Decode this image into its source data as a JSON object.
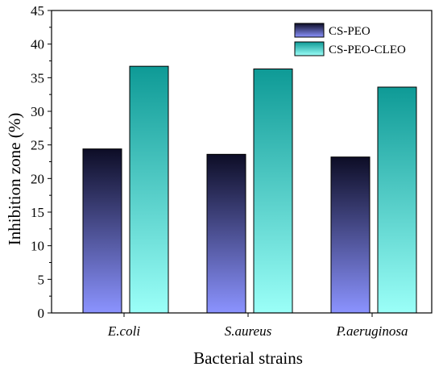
{
  "chart_data": {
    "type": "bar",
    "categories": [
      "E.coli",
      "S.aureus",
      "P.aeruginosa"
    ],
    "series": [
      {
        "name": "CS-PEO",
        "values": [
          24.4,
          23.6,
          23.2
        ],
        "color_top": "#0d0d26",
        "color_bottom": "#8b93ff"
      },
      {
        "name": "CS-PEO-CLEO",
        "values": [
          36.7,
          36.3,
          33.6
        ],
        "color_top": "#0e9a96",
        "color_bottom": "#9bfff8"
      }
    ],
    "xlabel": "Bacterial strains",
    "ylabel": "Inhibition zone (%)",
    "ylim": [
      0,
      45
    ],
    "yticks": [
      0,
      5,
      10,
      15,
      20,
      25,
      30,
      35,
      40,
      45
    ],
    "legend_position": "top-right",
    "grid": false
  }
}
